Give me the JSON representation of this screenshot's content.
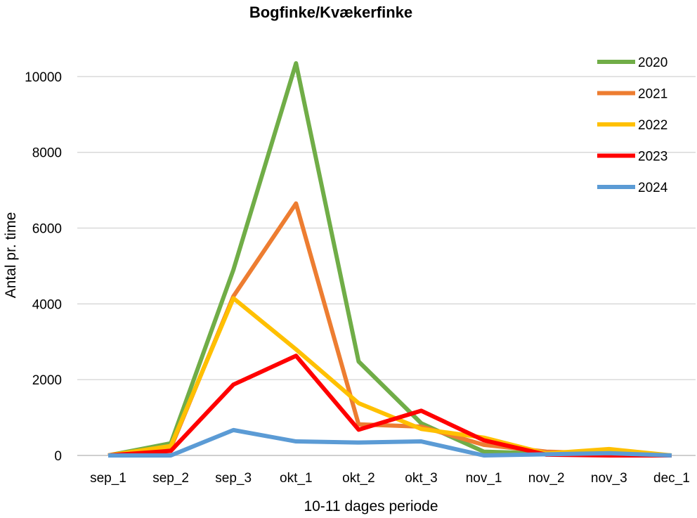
{
  "chart_data": {
    "type": "line",
    "title": "Bogfinke/Kvækerfinke",
    "xlabel": "10-11 dages periode",
    "ylabel": "Antal pr. time",
    "categories": [
      "sep_1",
      "sep_2",
      "sep_3",
      "okt_1",
      "okt_2",
      "okt_3",
      "nov_1",
      "nov_2",
      "nov_3",
      "dec_1"
    ],
    "ylim": [
      0,
      10000
    ],
    "yticks": [
      0,
      2000,
      4000,
      6000,
      8000,
      10000
    ],
    "grid": true,
    "legend_position": "top-right",
    "series": [
      {
        "name": "2020",
        "color": "#70AD47",
        "values": [
          0,
          320,
          4900,
          10350,
          2480,
          850,
          100,
          50,
          60,
          0
        ]
      },
      {
        "name": "2021",
        "color": "#ED7D31",
        "values": [
          0,
          200,
          4200,
          6650,
          820,
          760,
          280,
          100,
          50,
          0
        ]
      },
      {
        "name": "2022",
        "color": "#FFC000",
        "values": [
          0,
          250,
          4150,
          2800,
          1380,
          700,
          470,
          50,
          170,
          0
        ]
      },
      {
        "name": "2023",
        "color": "#FF0000",
        "values": [
          0,
          120,
          1870,
          2630,
          680,
          1180,
          400,
          20,
          0,
          0
        ]
      },
      {
        "name": "2024",
        "color": "#5B9BD5",
        "values": [
          0,
          0,
          670,
          370,
          340,
          370,
          0,
          30,
          60,
          0
        ]
      }
    ]
  }
}
